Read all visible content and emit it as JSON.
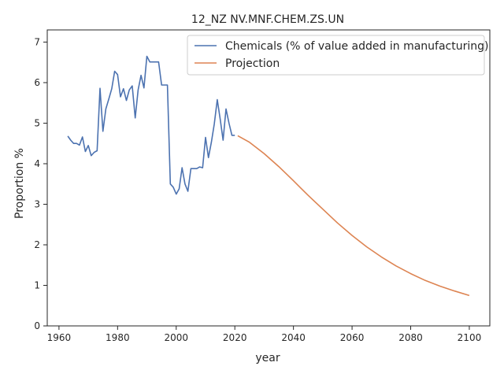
{
  "chart_data": {
    "type": "line",
    "title": "12_NZ NV.MNF.CHEM.ZS.UN",
    "xlabel": "year",
    "ylabel": "Proportion %",
    "xlim": [
      1956,
      2107
    ],
    "ylim": [
      0,
      7.3
    ],
    "xticks": [
      1960,
      1980,
      2000,
      2020,
      2040,
      2060,
      2080,
      2100
    ],
    "yticks": [
      0,
      1,
      2,
      3,
      4,
      5,
      6,
      7
    ],
    "grid": false,
    "legend": "top-right",
    "series": [
      {
        "name": "Chemicals (% of value added in manufacturing)",
        "color": "#4c72b0",
        "x": [
          1963,
          1964,
          1965,
          1966,
          1967,
          1968,
          1969,
          1970,
          1971,
          1972,
          1973,
          1974,
          1975,
          1976,
          1977,
          1978,
          1979,
          1980,
          1981,
          1982,
          1983,
          1984,
          1985,
          1986,
          1987,
          1988,
          1989,
          1990,
          1991,
          1992,
          1993,
          1994,
          1995,
          1996,
          1997,
          1998,
          1999,
          2000,
          2001,
          2002,
          2003,
          2004,
          2005,
          2006,
          2007,
          2008,
          2009,
          2010,
          2011,
          2012,
          2013,
          2014,
          2015,
          2016,
          2017,
          2018,
          2019,
          2020
        ],
        "values": [
          4.68,
          4.58,
          4.5,
          4.5,
          4.46,
          4.66,
          4.3,
          4.45,
          4.2,
          4.28,
          4.32,
          5.86,
          4.8,
          5.35,
          5.6,
          5.85,
          6.28,
          6.2,
          5.65,
          5.85,
          5.56,
          5.82,
          5.92,
          5.13,
          5.82,
          6.18,
          5.87,
          6.65,
          6.51,
          6.51,
          6.51,
          6.51,
          5.94,
          5.94,
          5.94,
          3.5,
          3.42,
          3.25,
          3.38,
          3.9,
          3.5,
          3.32,
          3.88,
          3.88,
          3.88,
          3.92,
          3.9,
          4.65,
          4.15,
          4.53,
          4.98,
          5.58,
          5.1,
          4.58,
          5.35,
          5.0,
          4.7,
          4.7
        ]
      },
      {
        "name": "Projection",
        "color": "#dd8452",
        "x": [
          2021,
          2025,
          2030,
          2035,
          2040,
          2045,
          2050,
          2055,
          2060,
          2065,
          2070,
          2075,
          2080,
          2085,
          2090,
          2095,
          2100
        ],
        "values": [
          4.69,
          4.53,
          4.25,
          3.93,
          3.58,
          3.22,
          2.88,
          2.54,
          2.23,
          1.95,
          1.7,
          1.48,
          1.29,
          1.12,
          0.98,
          0.86,
          0.75
        ]
      }
    ]
  }
}
